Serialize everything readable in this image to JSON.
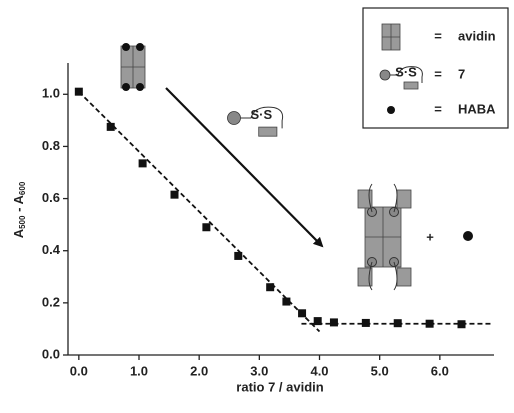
{
  "chart_data": {
    "type": "scatter",
    "xlabel": "ratio 7 / avidin",
    "ylabel": [
      "A",
      "500",
      " - A",
      "600"
    ],
    "xlim": [
      -0.18,
      6.9
    ],
    "ylim": [
      0,
      1.12
    ],
    "xticks": [
      {
        "value": 0,
        "label": "0.0"
      },
      {
        "value": 1,
        "label": "1.0"
      },
      {
        "value": 2,
        "label": "2.0"
      },
      {
        "value": 3,
        "label": "3.0"
      },
      {
        "value": 4,
        "label": "4.0"
      },
      {
        "value": 5,
        "label": "5.0"
      },
      {
        "value": 6,
        "label": "6.0"
      }
    ],
    "yticks": [
      {
        "value": 0,
        "label": "0.0"
      },
      {
        "value": 0.2,
        "label": "0.2"
      },
      {
        "value": 0.4,
        "label": "0.4"
      },
      {
        "value": 0.6,
        "label": "0.6"
      },
      {
        "value": 0.8,
        "label": "0.8"
      },
      {
        "value": 1,
        "label": "1.0"
      }
    ],
    "series": [
      {
        "color": "#111111",
        "x": [
          0.0,
          0.53,
          1.06,
          1.59,
          2.12,
          2.65,
          3.18,
          3.45,
          3.71,
          3.97,
          4.24,
          4.77,
          5.3,
          5.83,
          6.36
        ],
        "values": [
          1.01,
          0.875,
          0.735,
          0.615,
          0.49,
          0.38,
          0.26,
          0.205,
          0.16,
          0.13,
          0.125,
          0.123,
          0.122,
          0.12,
          0.118
        ]
      }
    ],
    "fit_lines": [
      {
        "x": [
          0.0,
          4.0
        ],
        "values": [
          1.01,
          0.09
        ]
      },
      {
        "x": [
          3.7,
          6.85
        ],
        "values": [
          0.12,
          0.12
        ]
      }
    ],
    "legend": [
      {
        "label": "avidin"
      },
      {
        "label": "7"
      },
      {
        "label": "HABA"
      }
    ],
    "legend_separator": "=",
    "plus": "+",
    "disulfide": "S·S"
  }
}
